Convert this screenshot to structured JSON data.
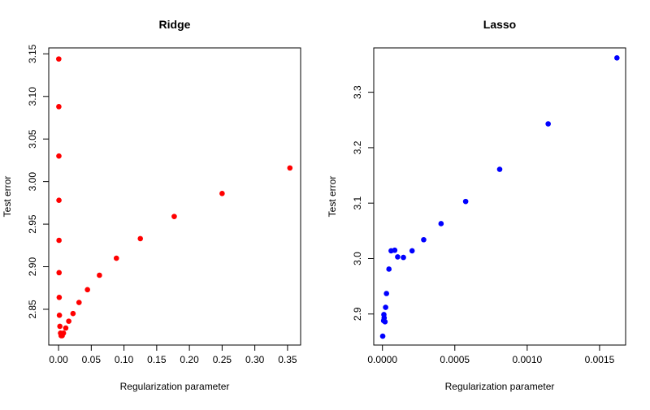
{
  "chart_data": [
    {
      "type": "scatter",
      "title": "Ridge",
      "xlabel": "Regularization parameter",
      "ylabel": "Test error",
      "xlim": [
        -0.015,
        0.37
      ],
      "ylim": [
        2.808,
        3.157
      ],
      "xticks": [
        0.0,
        0.05,
        0.1,
        0.15,
        0.2,
        0.25,
        0.3,
        0.35
      ],
      "xtick_labels": [
        "0.00",
        "0.05",
        "0.10",
        "0.15",
        "0.20",
        "0.25",
        "0.30",
        "0.35"
      ],
      "yticks": [
        2.85,
        2.9,
        2.95,
        3.0,
        3.05,
        3.1,
        3.15
      ],
      "ytick_labels": [
        "2.85",
        "2.90",
        "2.95",
        "3.00",
        "3.05",
        "3.10",
        "3.15"
      ],
      "color": "#ff0000",
      "grid": false,
      "points": [
        {
          "x": 0.0003,
          "y": 3.144
        },
        {
          "x": 0.0004,
          "y": 3.088
        },
        {
          "x": 0.0005,
          "y": 3.03
        },
        {
          "x": 0.0006,
          "y": 2.978
        },
        {
          "x": 0.0007,
          "y": 2.931
        },
        {
          "x": 0.0008,
          "y": 2.893
        },
        {
          "x": 0.001,
          "y": 2.864
        },
        {
          "x": 0.0013,
          "y": 2.843
        },
        {
          "x": 0.002,
          "y": 2.83
        },
        {
          "x": 0.003,
          "y": 2.822
        },
        {
          "x": 0.004,
          "y": 2.819
        },
        {
          "x": 0.0055,
          "y": 2.819
        },
        {
          "x": 0.0075,
          "y": 2.822
        },
        {
          "x": 0.011,
          "y": 2.828
        },
        {
          "x": 0.0156,
          "y": 2.836
        },
        {
          "x": 0.0221,
          "y": 2.845
        },
        {
          "x": 0.0313,
          "y": 2.858
        },
        {
          "x": 0.0442,
          "y": 2.873
        },
        {
          "x": 0.0625,
          "y": 2.89
        },
        {
          "x": 0.0884,
          "y": 2.91
        },
        {
          "x": 0.125,
          "y": 2.933
        },
        {
          "x": 0.1768,
          "y": 2.959
        },
        {
          "x": 0.25,
          "y": 2.986
        },
        {
          "x": 0.3536,
          "y": 3.016
        }
      ]
    },
    {
      "type": "scatter",
      "title": "Lasso",
      "xlabel": "Regularization parameter",
      "ylabel": "Test error",
      "xlim": [
        -6e-05,
        0.00168
      ],
      "ylim": [
        2.844,
        3.38
      ],
      "xticks": [
        0.0,
        0.0005,
        0.001,
        0.0015
      ],
      "xtick_labels": [
        "0.0000",
        "0.0005",
        "0.0010",
        "0.0015"
      ],
      "yticks": [
        2.9,
        3.0,
        3.1,
        3.2,
        3.3
      ],
      "ytick_labels": [
        "2.9",
        "3.0",
        "3.1",
        "3.2",
        "3.3"
      ],
      "color": "#0000ff",
      "grid": false,
      "points": [
        {
          "x": 2e-06,
          "y": 2.86
        },
        {
          "x": 8e-06,
          "y": 2.888
        },
        {
          "x": 1.2e-05,
          "y": 2.893
        },
        {
          "x": 1e-05,
          "y": 2.899
        },
        {
          "x": 1.8e-05,
          "y": 2.886
        },
        {
          "x": 2.2e-05,
          "y": 2.912
        },
        {
          "x": 2.8e-05,
          "y": 2.937
        },
        {
          "x": 4.5e-05,
          "y": 2.981
        },
        {
          "x": 6e-05,
          "y": 3.014
        },
        {
          "x": 8.5e-05,
          "y": 3.015
        },
        {
          "x": 0.000105,
          "y": 3.003
        },
        {
          "x": 0.000145,
          "y": 3.002
        },
        {
          "x": 0.000205,
          "y": 3.014
        },
        {
          "x": 0.000285,
          "y": 3.034
        },
        {
          "x": 0.000405,
          "y": 3.063
        },
        {
          "x": 0.000575,
          "y": 3.103
        },
        {
          "x": 0.00081,
          "y": 3.161
        },
        {
          "x": 0.001145,
          "y": 3.243
        },
        {
          "x": 0.00162,
          "y": 3.362
        }
      ]
    }
  ]
}
